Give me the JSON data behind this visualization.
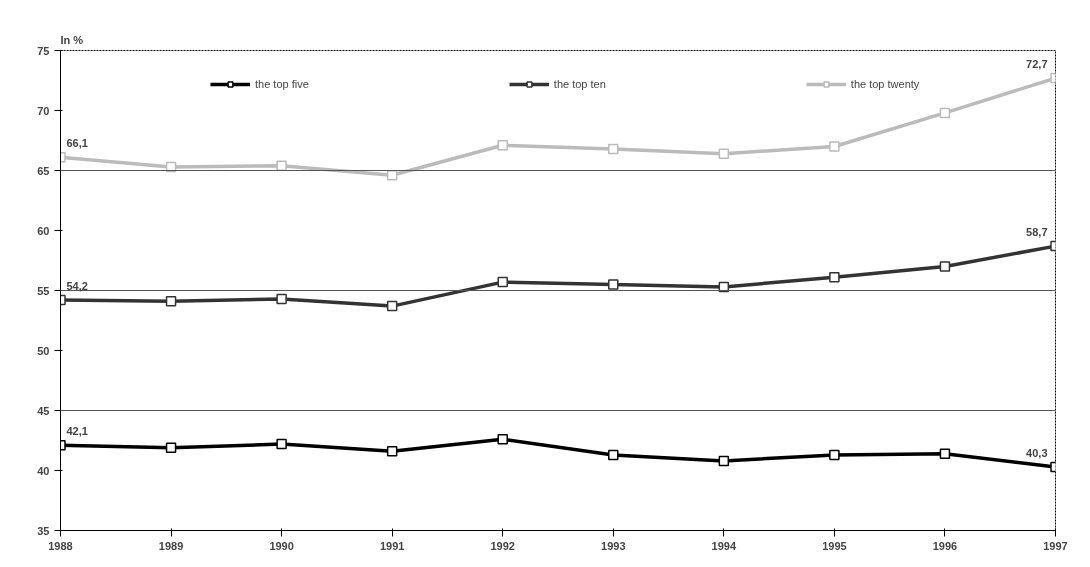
{
  "chart_data": {
    "type": "line",
    "ylabel": "In %",
    "x": [
      1988,
      1989,
      1990,
      1991,
      1992,
      1993,
      1994,
      1995,
      1996,
      1997
    ],
    "xlim": [
      1988,
      1997
    ],
    "xticks": [
      1988,
      1989,
      1990,
      1991,
      1992,
      1993,
      1994,
      1995,
      1996,
      1997
    ],
    "ylim": [
      35,
      75
    ],
    "yticks": [
      35,
      40,
      45,
      50,
      55,
      60,
      65,
      70,
      75
    ],
    "grid": false,
    "legend": "top",
    "marker": "square",
    "line_style": "solid",
    "ref_lines": [
      {
        "axis": "y",
        "value": 45,
        "color": "#555555"
      },
      {
        "axis": "y",
        "value": 55,
        "color": "#555555"
      },
      {
        "axis": "y",
        "value": 65,
        "color": "#555555"
      }
    ],
    "series": [
      {
        "name": "the top five",
        "color": "#000000",
        "values": [
          42.1,
          41.9,
          42.2,
          41.6,
          42.6,
          41.3,
          40.8,
          41.3,
          41.4,
          40.3
        ],
        "value_labels": [
          "42,1",
          null,
          null,
          null,
          null,
          null,
          null,
          null,
          null,
          "40,3"
        ]
      },
      {
        "name": "the top ten",
        "color": "#333333",
        "values": [
          54.2,
          54.1,
          54.3,
          53.7,
          55.7,
          55.5,
          55.3,
          56.1,
          57.0,
          58.7
        ],
        "value_labels": [
          "54,2",
          null,
          null,
          null,
          null,
          null,
          null,
          null,
          null,
          "58,7"
        ]
      },
      {
        "name": "the top twenty",
        "color": "#bbbbbb",
        "values": [
          66.1,
          65.3,
          65.4,
          64.6,
          67.1,
          66.8,
          66.4,
          67.0,
          69.8,
          72.7
        ],
        "value_labels": [
          "66,1",
          null,
          null,
          null,
          null,
          null,
          null,
          null,
          null,
          "72,7"
        ]
      }
    ]
  }
}
